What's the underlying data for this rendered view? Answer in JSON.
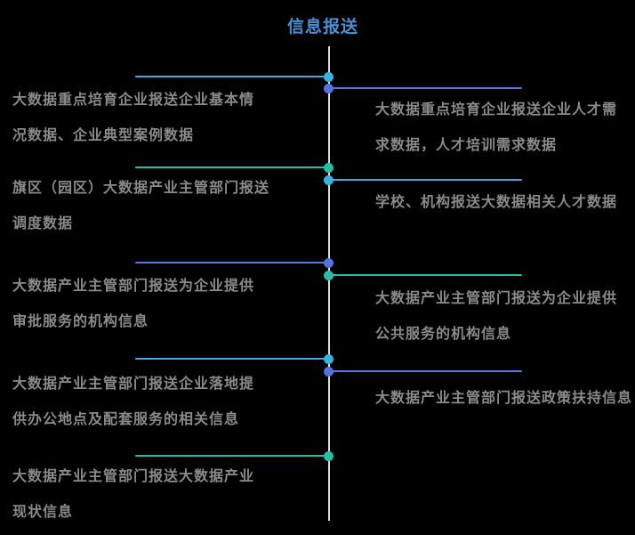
{
  "title": {
    "text": "信息报送",
    "color": "#4a8fd2"
  },
  "diagram": {
    "type": "mind-map-timeline",
    "background": "#000000",
    "spine_color": "#dcdcdc",
    "label_text_color": "#8a8a8a",
    "branch_colors": {
      "sky": "#3fa9e0",
      "periwinkle": "#5578e2",
      "teal": "#20bda9"
    }
  },
  "branches": [
    {
      "side": "left",
      "color": "sky",
      "text": "大数据重点培育企业报送企业基本情况数据、企业典型案例数据",
      "lines": [
        "大数据重点培育企业报送企业基本情",
        "况数据、企业典型案例数据"
      ]
    },
    {
      "side": "right",
      "color": "periwinkle",
      "text": "大数据重点培育企业报送企业人才需求数据，人才培训需求数据",
      "lines": [
        "大数据重点培育企业报送企业人才需",
        "求数据，人才培训需求数据"
      ]
    },
    {
      "side": "left",
      "color": "teal",
      "text": "旗区（园区）大数据产业主管部门报送调度数据",
      "lines": [
        "旗区（园区）大数据产业主管部门报送",
        "调度数据"
      ]
    },
    {
      "side": "right",
      "color": "sky",
      "text": "学校、机构报送大数据相关人才数据",
      "lines": [
        "学校、机构报送大数据相关人才数据"
      ]
    },
    {
      "side": "left",
      "color": "periwinkle",
      "text": "大数据产业主管部门报送为企业提供审批服务的机构信息",
      "lines": [
        "大数据产业主管部门报送为企业提供",
        "审批服务的机构信息"
      ]
    },
    {
      "side": "right",
      "color": "teal",
      "text": "大数据产业主管部门报送为企业提供公共服务的机构信息",
      "lines": [
        "大数据产业主管部门报送为企业提供",
        "公共服务的机构信息"
      ]
    },
    {
      "side": "left",
      "color": "sky",
      "text": "大数据产业主管部门报送企业落地提供办公地点及配套服务的相关信息",
      "lines": [
        "大数据产业主管部门报送企业落地提",
        "供办公地点及配套服务的相关信息"
      ]
    },
    {
      "side": "right",
      "color": "periwinkle",
      "text": "大数据产业主管部门报送政策扶持信息",
      "lines": [
        "大数据产业主管部门报送政策扶持信息"
      ]
    },
    {
      "side": "left",
      "color": "teal",
      "text": "大数据产业主管部门报送大数据产业现状信息",
      "lines": [
        "大数据产业主管部门报送大数据产业",
        "现状信息"
      ]
    }
  ]
}
